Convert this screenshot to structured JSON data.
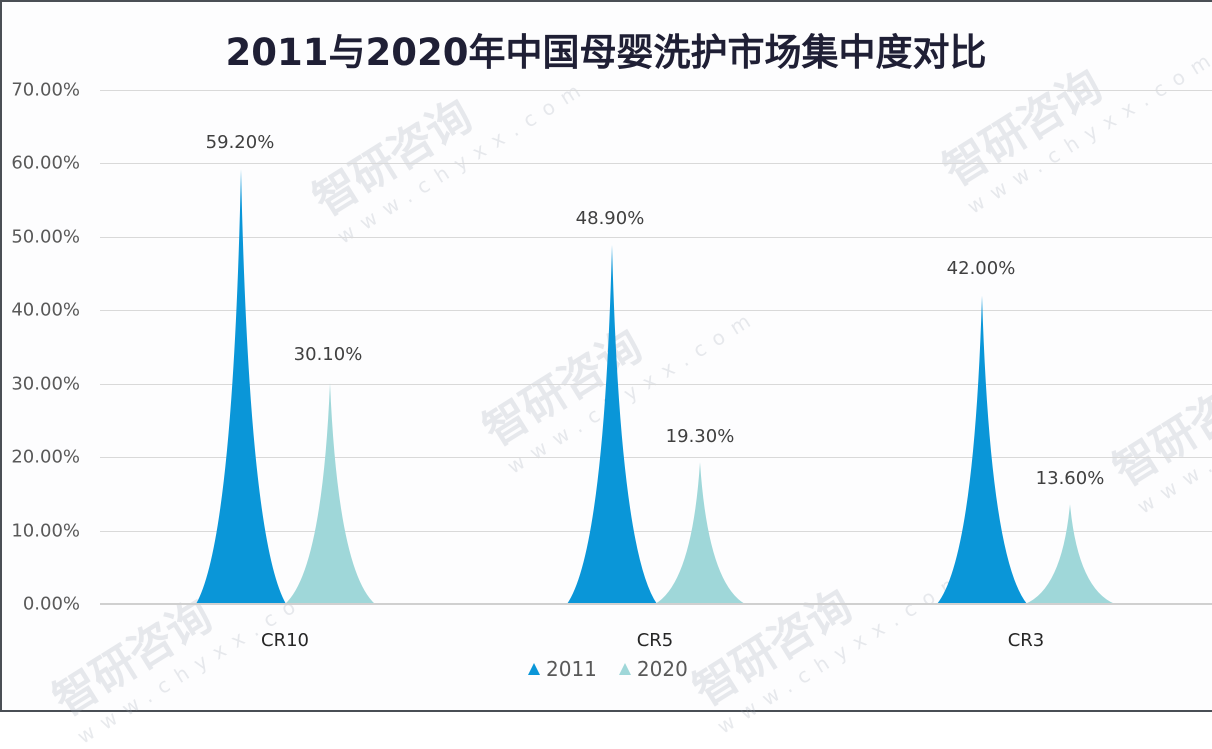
{
  "title": "2011与2020年中国母婴洗护市场集中度对比",
  "colors": {
    "series_2011": "#0a96d8",
    "series_2020": "#9fd7d9",
    "frame": "#4a4f55",
    "grid": "#d9d9d9"
  },
  "y_axis": {
    "ticks": [
      "70.00%",
      "60.00%",
      "50.00%",
      "40.00%",
      "30.00%",
      "20.00%",
      "10.00%",
      "0.00%"
    ]
  },
  "categories": [
    "CR10",
    "CR5",
    "CR3"
  ],
  "data_labels": {
    "s2011": [
      "59.20%",
      "48.90%",
      "42.00%"
    ],
    "s2020": [
      "30.10%",
      "19.30%",
      "13.60%"
    ]
  },
  "legend": {
    "items": [
      {
        "label": "2011"
      },
      {
        "label": "2020"
      }
    ]
  },
  "watermark": {
    "text": "智研咨询",
    "url_text": "www.chyxx.com"
  },
  "chart_data": {
    "type": "bar",
    "title": "2011与2020年中国母婴洗护市场集中度对比",
    "categories": [
      "CR10",
      "CR5",
      "CR3"
    ],
    "series": [
      {
        "name": "2011",
        "values": [
          59.2,
          48.9,
          42.0
        ],
        "color": "#0a96d8"
      },
      {
        "name": "2020",
        "values": [
          30.1,
          19.3,
          13.6
        ],
        "color": "#9fd7d9"
      }
    ],
    "value_format": "percent (2 decimals)",
    "bar_shape": "spike / pointed triangle with concave sides",
    "xlabel": "",
    "ylabel": "",
    "ylim": [
      0,
      70
    ],
    "ytick_step": 10,
    "grid": true,
    "legend_position": "bottom",
    "data_labels": true
  }
}
